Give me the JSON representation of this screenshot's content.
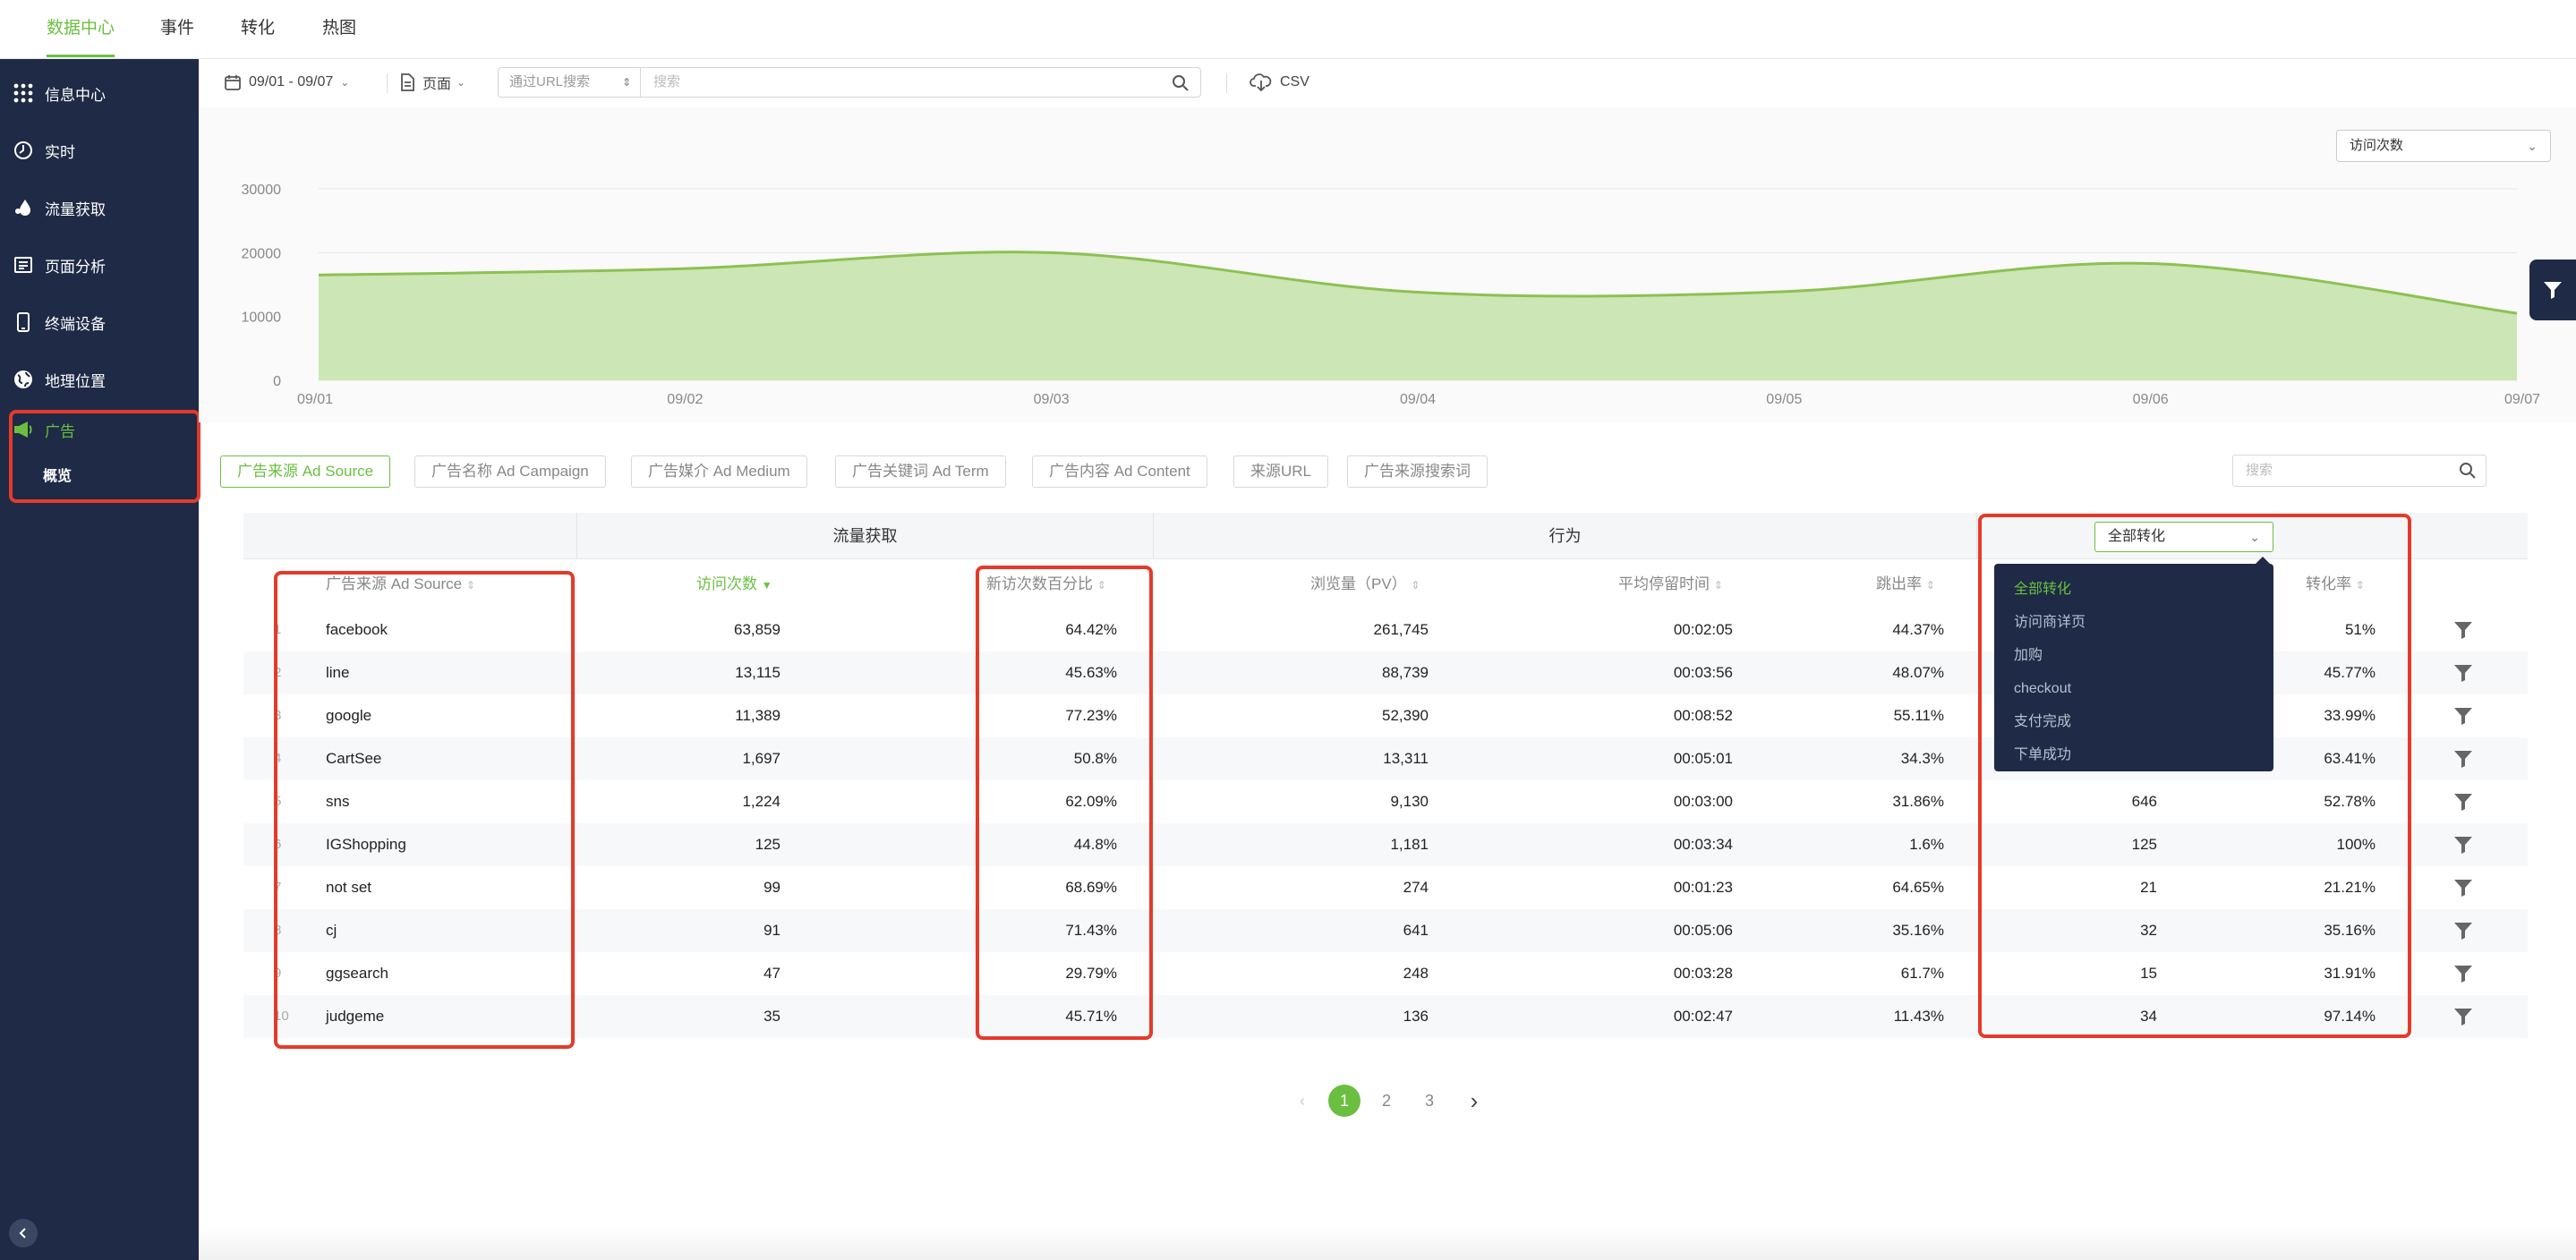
{
  "topnav": {
    "tabs": [
      "数据中心",
      "事件",
      "转化",
      "热图"
    ],
    "active": 0
  },
  "sidebar": {
    "items": [
      {
        "label": "信息中心",
        "icon": "grid-icon"
      },
      {
        "label": "实时",
        "icon": "clock-icon"
      },
      {
        "label": "流量获取",
        "icon": "drop-icon"
      },
      {
        "label": "页面分析",
        "icon": "page-icon"
      },
      {
        "label": "终端设备",
        "icon": "phone-icon"
      },
      {
        "label": "地理位置",
        "icon": "globe-icon"
      },
      {
        "label": "广告",
        "icon": "megaphone-icon"
      }
    ],
    "sub_item": "概览"
  },
  "toolbar": {
    "date_range": "09/01 - 09/07",
    "page_select": "页面",
    "url_search_select": "通过URL搜索",
    "search_placeholder": "搜索",
    "csv_label": "CSV"
  },
  "metric_select": "访问次数",
  "chart_data": {
    "type": "area",
    "x": [
      "09/01",
      "09/02",
      "09/03",
      "09/04",
      "09/05",
      "09/06",
      "09/07"
    ],
    "series": [
      {
        "name": "访问次数",
        "values": [
          16500,
          17500,
          20000,
          13800,
          13900,
          18300,
          10500
        ]
      }
    ],
    "ylim": [
      0,
      30000
    ],
    "yticks": [
      "30000",
      "20000",
      "10000",
      "0"
    ],
    "color": "#8cc152",
    "fill": "#cde6b5"
  },
  "chips": [
    "广告来源 Ad Source",
    "广告名称 Ad Campaign",
    "广告媒介 Ad Medium",
    "广告关键词 Ad Term",
    "广告内容 Ad Content",
    "来源URL",
    "广告来源搜索词"
  ],
  "table_search_placeholder": "搜索",
  "groups": {
    "traffic": "流量获取",
    "behavior": "行为"
  },
  "conversion_select": "全部转化",
  "conversion_options": [
    "全部转化",
    "访问商详页",
    "加购",
    "checkout",
    "支付完成",
    "下单成功"
  ],
  "columns": {
    "source": "广告来源 Ad Source",
    "visits": "访问次数",
    "new_pct": "新访次数百分比",
    "pv": "浏览量（PV）",
    "avg_time": "平均停留时间",
    "bounce": "跳出率",
    "conv_rate": "转化率"
  },
  "rows": [
    {
      "idx": "1",
      "source": "facebook",
      "visits": "63,859",
      "new_pct": "64.42%",
      "pv": "261,745",
      "avg_time": "00:02:05",
      "bounce": "44.37%",
      "conv": "",
      "conv_rate": "51%"
    },
    {
      "idx": "2",
      "source": "line",
      "visits": "13,115",
      "new_pct": "45.63%",
      "pv": "88,739",
      "avg_time": "00:03:56",
      "bounce": "48.07%",
      "conv": "",
      "conv_rate": "45.77%"
    },
    {
      "idx": "3",
      "source": "google",
      "visits": "11,389",
      "new_pct": "77.23%",
      "pv": "52,390",
      "avg_time": "00:08:52",
      "bounce": "55.11%",
      "conv": "",
      "conv_rate": "33.99%"
    },
    {
      "idx": "4",
      "source": "CartSee",
      "visits": "1,697",
      "new_pct": "50.8%",
      "pv": "13,311",
      "avg_time": "00:05:01",
      "bounce": "34.3%",
      "conv": "",
      "conv_rate": "63.41%"
    },
    {
      "idx": "5",
      "source": "sns",
      "visits": "1,224",
      "new_pct": "62.09%",
      "pv": "9,130",
      "avg_time": "00:03:00",
      "bounce": "31.86%",
      "conv": "646",
      "conv_rate": "52.78%"
    },
    {
      "idx": "6",
      "source": "IGShopping",
      "visits": "125",
      "new_pct": "44.8%",
      "pv": "1,181",
      "avg_time": "00:03:34",
      "bounce": "1.6%",
      "conv": "125",
      "conv_rate": "100%"
    },
    {
      "idx": "7",
      "source": "not set",
      "visits": "99",
      "new_pct": "68.69%",
      "pv": "274",
      "avg_time": "00:01:23",
      "bounce": "64.65%",
      "conv": "21",
      "conv_rate": "21.21%"
    },
    {
      "idx": "8",
      "source": "cj",
      "visits": "91",
      "new_pct": "71.43%",
      "pv": "641",
      "avg_time": "00:05:06",
      "bounce": "35.16%",
      "conv": "32",
      "conv_rate": "35.16%"
    },
    {
      "idx": "9",
      "source": "ggsearch",
      "visits": "47",
      "new_pct": "29.79%",
      "pv": "248",
      "avg_time": "00:03:28",
      "bounce": "61.7%",
      "conv": "15",
      "conv_rate": "31.91%"
    },
    {
      "idx": "10",
      "source": "judgeme",
      "visits": "35",
      "new_pct": "45.71%",
      "pv": "136",
      "avg_time": "00:02:47",
      "bounce": "11.43%",
      "conv": "34",
      "conv_rate": "97.14%"
    }
  ],
  "pagination": {
    "pages": [
      "1",
      "2",
      "3"
    ],
    "current": "1"
  },
  "colors": {
    "accent": "#6abf40",
    "sidebar": "#1e2a46",
    "highlight": "#e53a2a"
  }
}
